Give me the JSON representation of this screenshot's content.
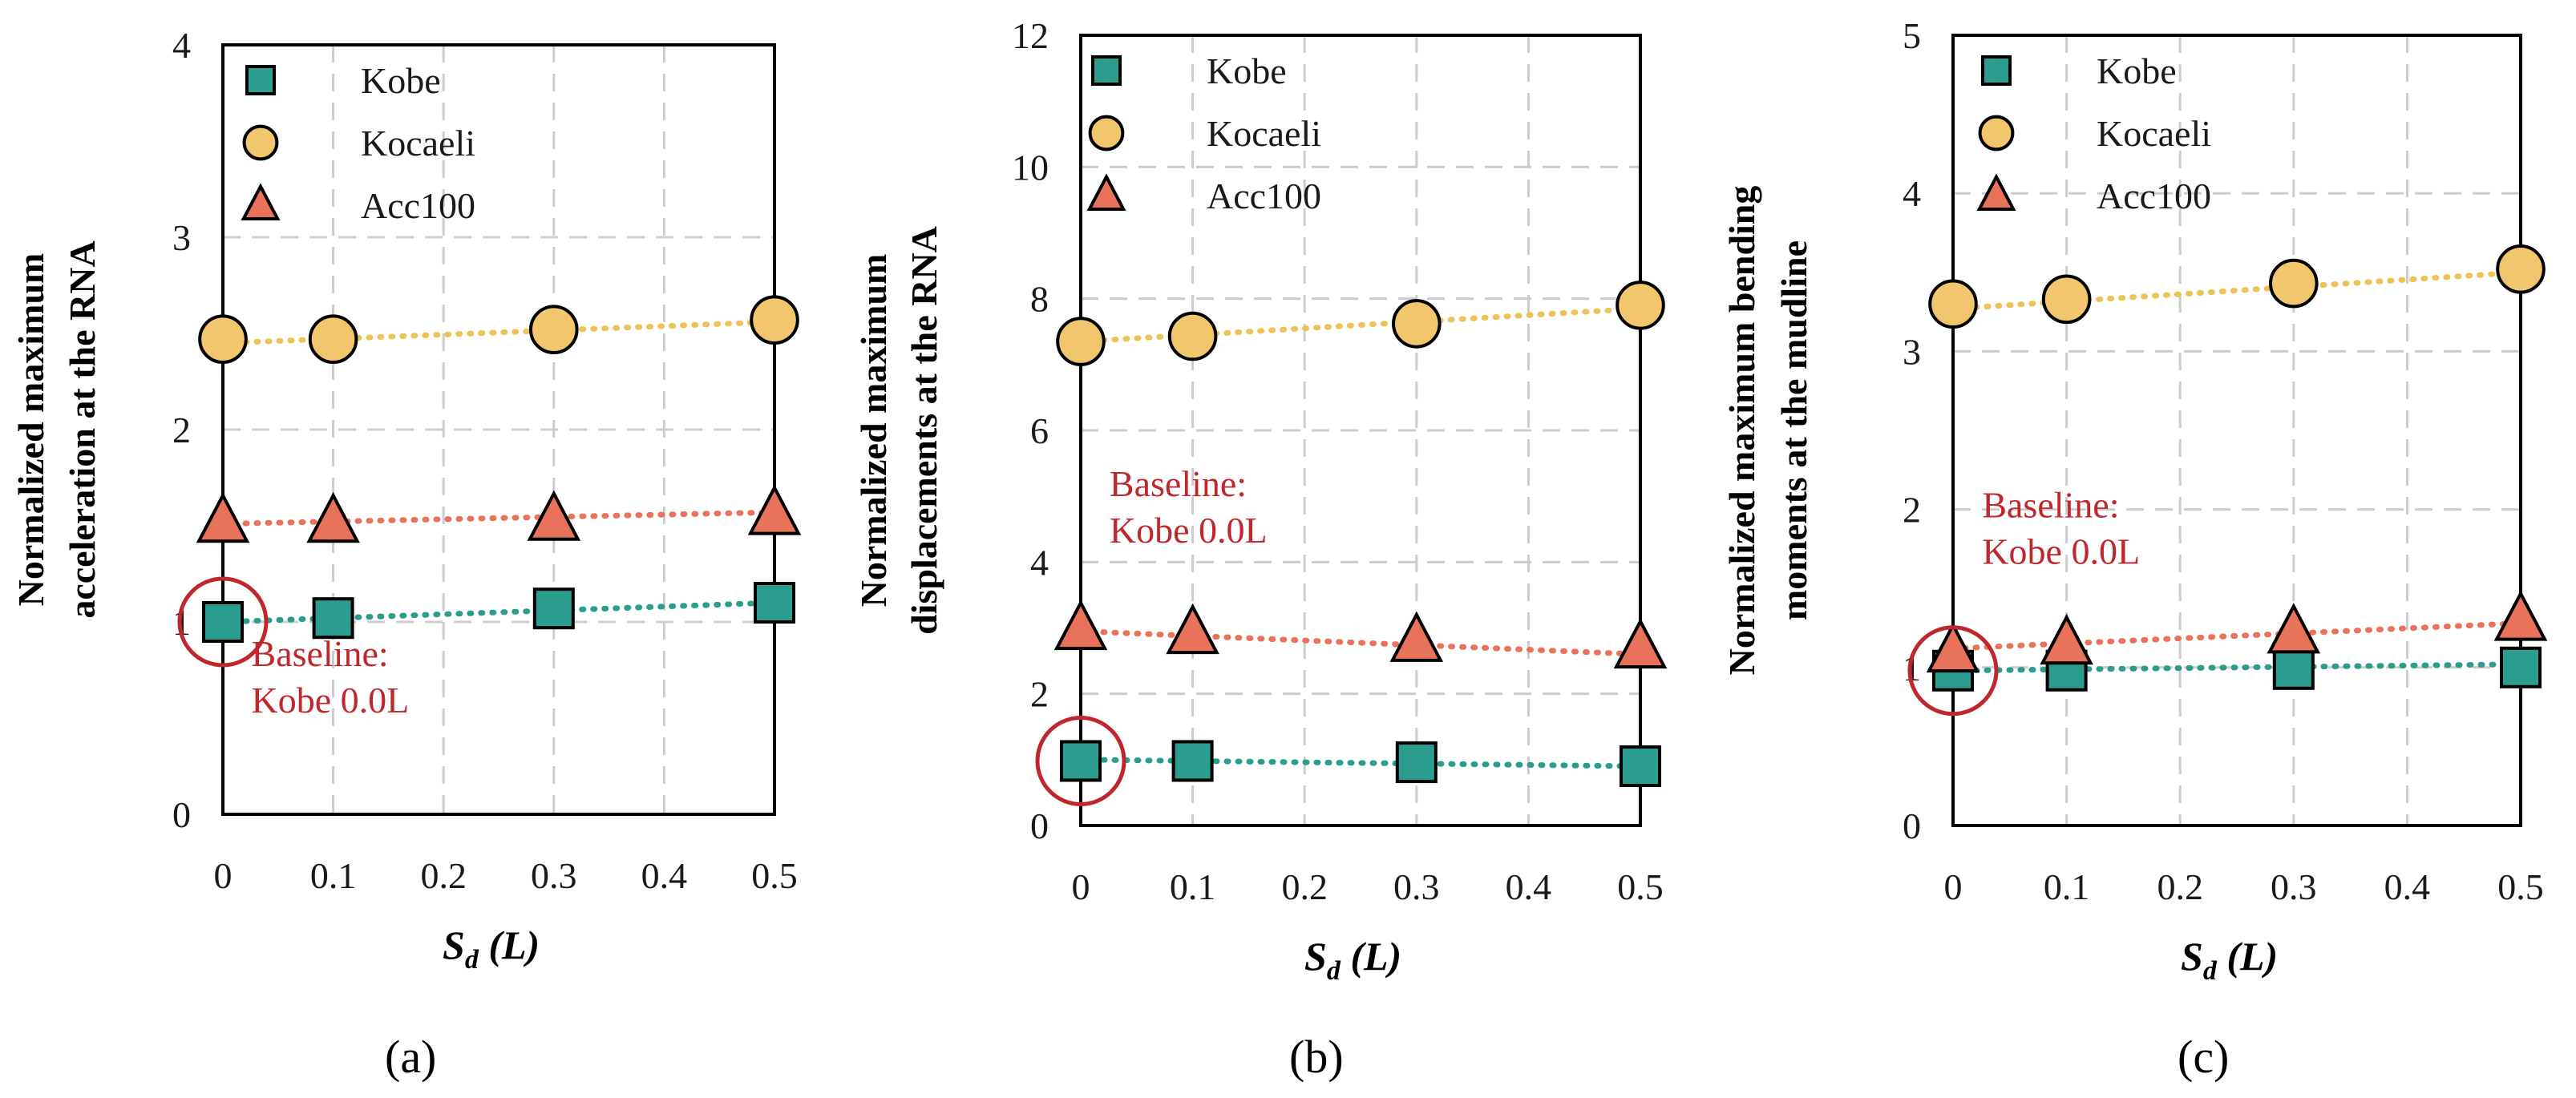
{
  "colors": {
    "kobe": "#2a9d8f",
    "kocaeli": "#f2c66d",
    "acc100": "#e8735a",
    "kobe_line": "#2a9d8f",
    "kocaeli_line": "#eec356",
    "acc100_line": "#e8735a",
    "baseline": "#c0272d",
    "grid": "#cccccc",
    "axis": "#000000"
  },
  "panel_labels": [
    "(a)",
    "(b)",
    "(c)"
  ],
  "chart_data": [
    {
      "type": "scatter",
      "panel": "(a)",
      "xlabel_main": "S",
      "xlabel_sub": "d",
      "xlabel_unit": " (L)",
      "ylabel_lines": [
        "Normalized  maximum",
        "acceleration at the RNA"
      ],
      "x": [
        0,
        0.1,
        0.3,
        0.5
      ],
      "xticks": [
        "0",
        "0.1",
        "0.2",
        "0.3",
        "0.4",
        "0.5"
      ],
      "xlim": [
        0,
        0.5
      ],
      "ylim": [
        0,
        4
      ],
      "yticks": [
        "0",
        "1",
        "2",
        "3",
        "4"
      ],
      "series": [
        {
          "name": "Kobe",
          "marker": "square",
          "values": [
            1.0,
            1.02,
            1.07,
            1.1
          ],
          "trend": [
            1.0,
            1.1
          ]
        },
        {
          "name": "Kocaeli",
          "marker": "circle",
          "values": [
            2.47,
            2.47,
            2.52,
            2.57
          ],
          "trend": [
            2.45,
            2.56
          ]
        },
        {
          "name": "Acc100",
          "marker": "triangle",
          "values": [
            1.52,
            1.52,
            1.53,
            1.56
          ],
          "trend": [
            1.51,
            1.57
          ]
        }
      ],
      "annotation": {
        "lines": [
          "Baseline:",
          "Kobe 0.0L"
        ],
        "x": 0.02,
        "y": 0.77,
        "circle_at": [
          0,
          1.0
        ]
      }
    },
    {
      "type": "scatter",
      "panel": "(b)",
      "xlabel_main": "S",
      "xlabel_sub": "d",
      "xlabel_unit": " (L)",
      "ylabel_lines": [
        "Normalized      maximum",
        "displacements  at the RNA"
      ],
      "x": [
        0,
        0.1,
        0.3,
        0.5
      ],
      "xticks": [
        "0",
        "0.1",
        "0.2",
        "0.3",
        "0.4",
        "0.5"
      ],
      "xlim": [
        0,
        0.5
      ],
      "ylim": [
        0,
        12
      ],
      "yticks": [
        "0",
        "2",
        "4",
        "6",
        "8",
        "10",
        "12"
      ],
      "series": [
        {
          "name": "Kobe",
          "marker": "square",
          "values": [
            0.98,
            0.98,
            0.96,
            0.9
          ],
          "trend": [
            1.0,
            0.9
          ]
        },
        {
          "name": "Kocaeli",
          "marker": "circle",
          "values": [
            7.35,
            7.43,
            7.62,
            7.9
          ],
          "trend": [
            7.35,
            7.85
          ]
        },
        {
          "name": "Acc100",
          "marker": "triangle",
          "values": [
            2.98,
            2.92,
            2.8,
            2.7
          ],
          "trend": [
            2.95,
            2.6
          ]
        }
      ],
      "annotation": {
        "lines": [
          "Baseline:",
          "Kobe 0.0L"
        ],
        "x": 0.02,
        "y": 5.0,
        "circle_at": [
          0,
          0.98
        ]
      }
    },
    {
      "type": "scatter",
      "panel": "(c)",
      "xlabel_main": "S",
      "xlabel_sub": "d",
      "xlabel_unit": " (L)",
      "ylabel_lines": [
        "Normalized  maximum   bending",
        "moments  at the mudline"
      ],
      "x": [
        0,
        0.1,
        0.3,
        0.5
      ],
      "xticks": [
        "0",
        "0.1",
        "0.2",
        "0.3",
        "0.4",
        "0.5"
      ],
      "xlim": [
        0,
        0.5
      ],
      "ylim": [
        0,
        5
      ],
      "yticks": [
        "0",
        "1",
        "2",
        "3",
        "4",
        "5"
      ],
      "series": [
        {
          "name": "Kobe",
          "marker": "square",
          "values": [
            0.98,
            0.98,
            0.99,
            1.0
          ],
          "trend": [
            0.98,
            1.02
          ]
        },
        {
          "name": "Kocaeli",
          "marker": "circle",
          "values": [
            3.3,
            3.33,
            3.43,
            3.52
          ],
          "trend": [
            3.27,
            3.5
          ]
        },
        {
          "name": "Acc100",
          "marker": "triangle",
          "values": [
            1.1,
            1.15,
            1.22,
            1.3
          ],
          "trend": [
            1.12,
            1.28
          ]
        }
      ],
      "annotation": {
        "lines": [
          "Baseline:",
          "Kobe 0.0L"
        ],
        "x": 0.02,
        "y": 1.95,
        "circle_at": [
          0,
          0.98
        ]
      }
    }
  ]
}
